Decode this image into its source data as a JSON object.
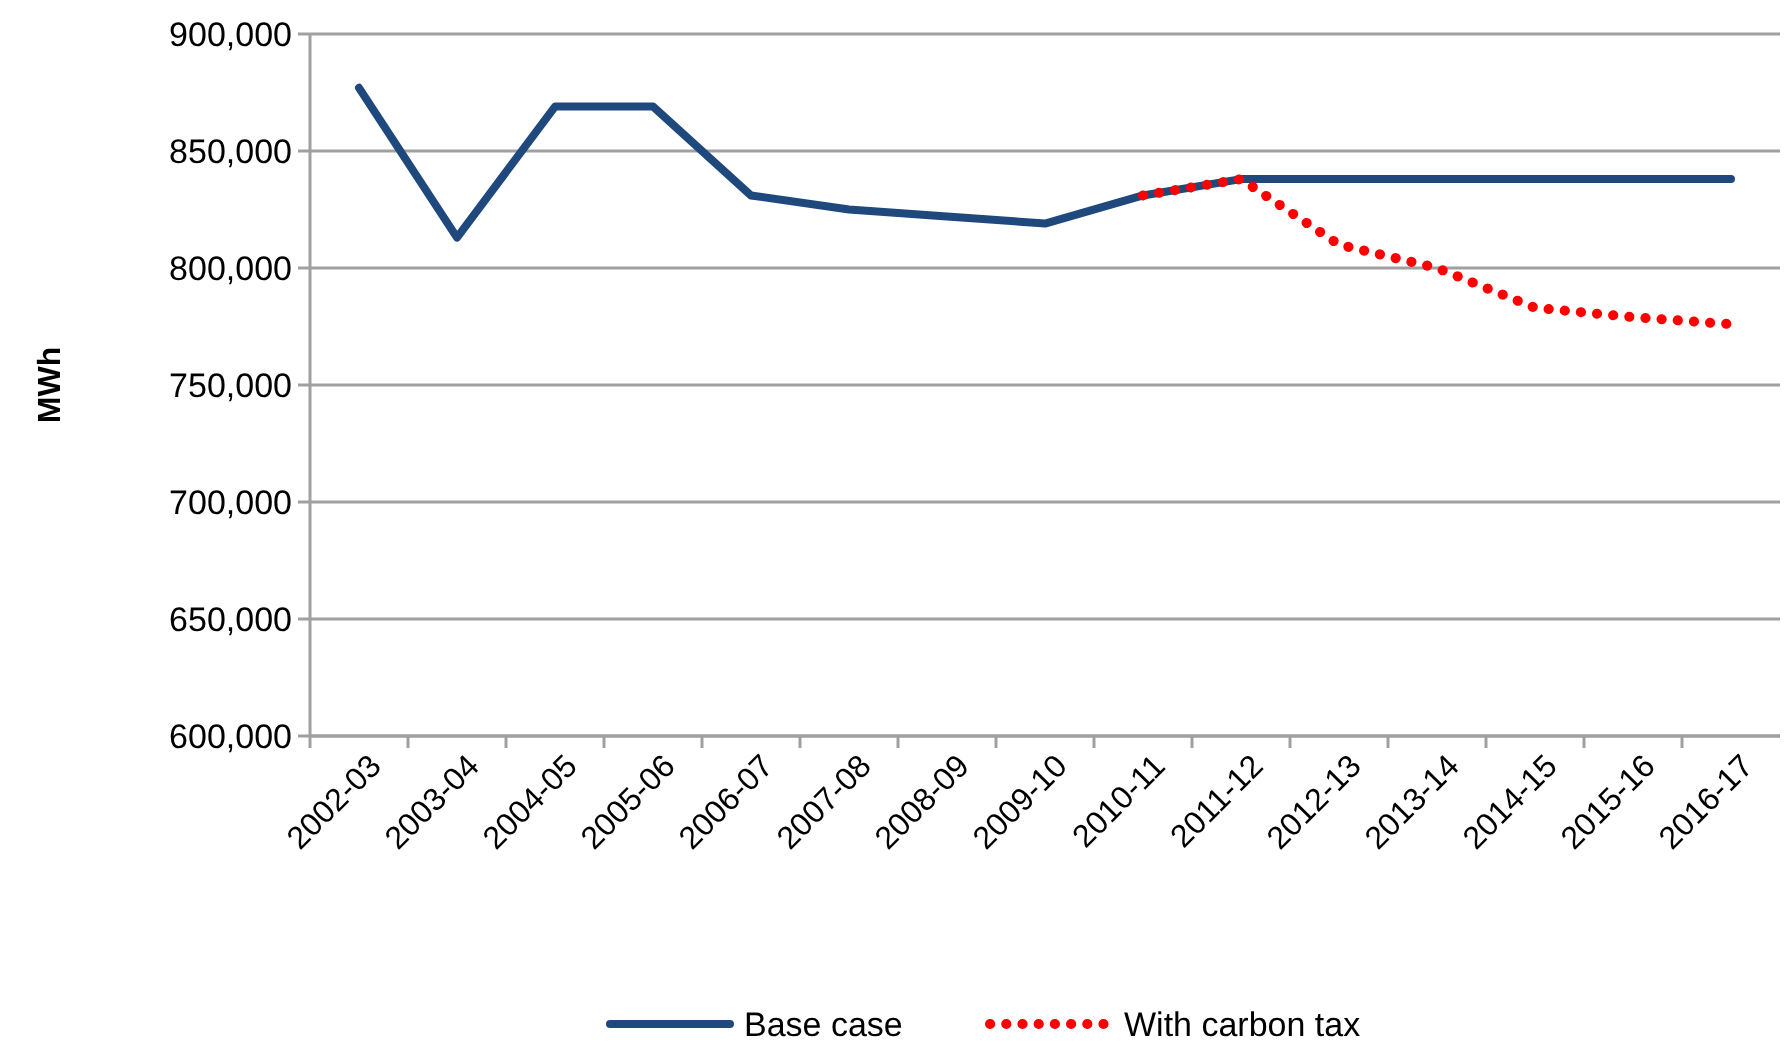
{
  "chart_data": {
    "type": "line",
    "ylabel": "MWh",
    "categories": [
      "2002-03",
      "2003-04",
      "2004-05",
      "2005-06",
      "2006-07",
      "2007-08",
      "2008-09",
      "2009-10",
      "2010-11",
      "2011-12",
      "2012-13",
      "2013-14",
      "2014-15",
      "2015-16",
      "2016-17"
    ],
    "series": [
      {
        "name": "Base case",
        "color": "#1f497d",
        "line_style": "solid",
        "values": [
          877000,
          813000,
          869000,
          869000,
          831000,
          825000,
          822000,
          819000,
          831000,
          838000,
          838000,
          838000,
          838000,
          838000,
          838000
        ]
      },
      {
        "name": "With carbon tax",
        "color": "#ff0000",
        "line_style": "dotted",
        "values": [
          null,
          null,
          null,
          null,
          null,
          null,
          null,
          null,
          831000,
          838000,
          810000,
          800000,
          783000,
          779000,
          776000
        ]
      }
    ],
    "ylim": [
      600000,
      900000
    ],
    "yticks": [
      {
        "value": 600000,
        "label": "600,000"
      },
      {
        "value": 650000,
        "label": "650,000"
      },
      {
        "value": 700000,
        "label": "700,000"
      },
      {
        "value": 750000,
        "label": "750,000"
      },
      {
        "value": 800000,
        "label": "800,000"
      },
      {
        "value": 850000,
        "label": "850,000"
      },
      {
        "value": 900000,
        "label": "900,000"
      }
    ],
    "grid": "y",
    "legend": "bottom"
  }
}
